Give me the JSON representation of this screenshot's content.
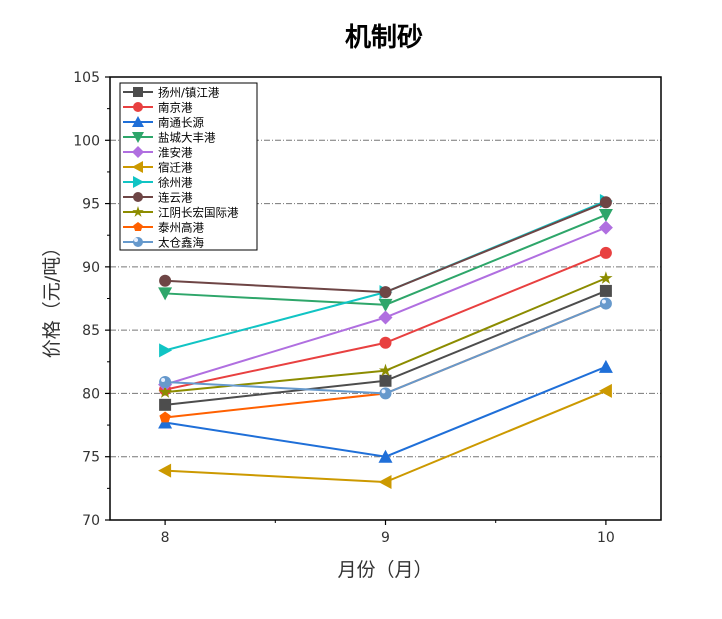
{
  "chart_data": {
    "type": "line",
    "title": "机制砂",
    "xlabel": "月份（月）",
    "ylabel": "价格（元/吨）",
    "x": [
      8,
      9,
      10
    ],
    "xlim": [
      7.75,
      10.25
    ],
    "ylim": [
      70,
      105
    ],
    "yticks": [
      70,
      75,
      80,
      85,
      90,
      95,
      100,
      105
    ],
    "xticks": [
      8,
      9,
      10
    ],
    "grid": "horizontal dash-dot",
    "legend": "top-left",
    "series": [
      {
        "name": "扬州/镇江港",
        "color": "#4d4d4d",
        "marker": "square",
        "values": [
          79.1,
          81,
          88.1
        ]
      },
      {
        "name": "南京港",
        "color": "#e84040",
        "marker": "circle",
        "values": [
          80.3,
          84,
          91.1
        ]
      },
      {
        "name": "南通长源",
        "color": "#1f6fd8",
        "marker": "triangle-up",
        "values": [
          77.7,
          75,
          82.1
        ]
      },
      {
        "name": "盐城大丰港",
        "color": "#2ea66a",
        "marker": "triangle-down",
        "values": [
          87.9,
          87,
          94.1
        ]
      },
      {
        "name": "淮安港",
        "color": "#b06fe0",
        "marker": "diamond",
        "values": [
          80.7,
          86,
          93.1
        ]
      },
      {
        "name": "宿迁港",
        "color": "#cc9900",
        "marker": "triangle-left",
        "values": [
          73.9,
          73,
          80.2
        ]
      },
      {
        "name": "徐州港",
        "color": "#11c4c4",
        "marker": "triangle-right",
        "values": [
          83.4,
          88,
          95.2
        ]
      },
      {
        "name": "连云港",
        "color": "#6e4545",
        "marker": "hexagon",
        "values": [
          88.9,
          88,
          95.1
        ]
      },
      {
        "name": "江阴长宏国际港",
        "color": "#8c8c00",
        "marker": "star",
        "values": [
          80.1,
          81.8,
          89.1
        ]
      },
      {
        "name": "泰州高港",
        "color": "#ff6000",
        "marker": "pentagon",
        "values": [
          78.1,
          80,
          87.1
        ]
      },
      {
        "name": "太仓鑫海",
        "color": "#6699cc",
        "marker": "sphere",
        "values": [
          80.9,
          80,
          87.1
        ]
      }
    ]
  }
}
